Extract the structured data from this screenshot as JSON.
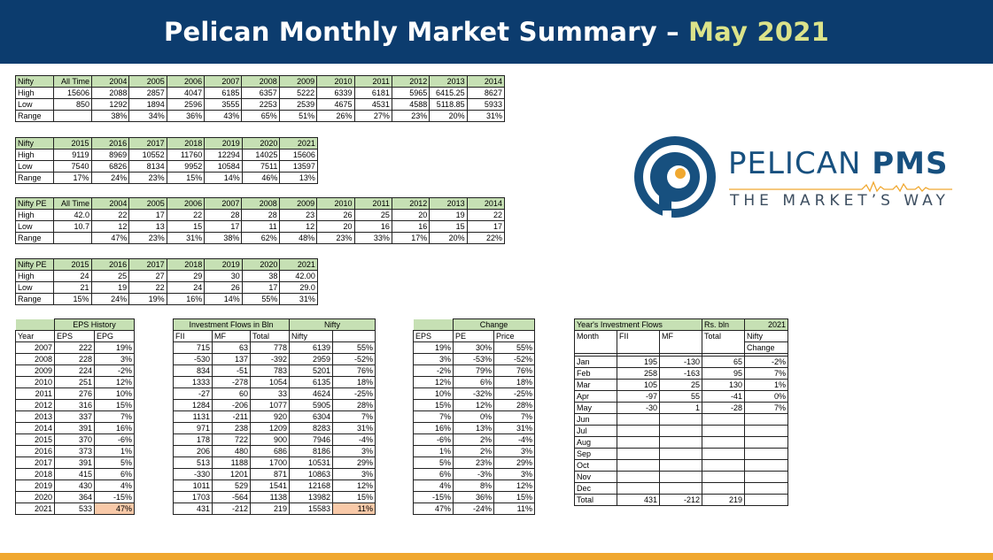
{
  "header": {
    "title_main": "Pelican Monthly Market Summary –",
    "title_accent": "May 2021"
  },
  "logo": {
    "name_light": "PELICAN",
    "name_bold": "PMS",
    "tagline": "THE MARKET’S WAY"
  },
  "t1": {
    "head": [
      "Nifty",
      "All Time",
      "2004",
      "2005",
      "2006",
      "2007",
      "2008",
      "2009",
      "2010",
      "2011",
      "2012",
      "2013",
      "2014"
    ],
    "rows": [
      [
        "High",
        "15606",
        "2088",
        "2857",
        "4047",
        "6185",
        "6357",
        "5222",
        "6339",
        "6181",
        "5965",
        "6415.25",
        "8627"
      ],
      [
        "Low",
        "850",
        "1292",
        "1894",
        "2596",
        "3555",
        "2253",
        "2539",
        "4675",
        "4531",
        "4588",
        "5118.85",
        "5933"
      ],
      [
        "Range",
        "",
        "38%",
        "34%",
        "36%",
        "43%",
        "65%",
        "51%",
        "26%",
        "27%",
        "23%",
        "20%",
        "31%"
      ]
    ]
  },
  "t2": {
    "head": [
      "Nifty",
      "2015",
      "2016",
      "2017",
      "2018",
      "2019",
      "2020",
      "2021"
    ],
    "rows": [
      [
        "High",
        "9119",
        "8969",
        "10552",
        "11760",
        "12294",
        "14025",
        "15606"
      ],
      [
        "Low",
        "7540",
        "6826",
        "8134",
        "9952",
        "10584",
        "7511",
        "13597"
      ],
      [
        "Range",
        "17%",
        "24%",
        "23%",
        "15%",
        "14%",
        "46%",
        "13%"
      ]
    ]
  },
  "t3": {
    "head": [
      "Nifty PE",
      "All Time",
      "2004",
      "2005",
      "2006",
      "2007",
      "2008",
      "2009",
      "2010",
      "2011",
      "2012",
      "2013",
      "2014"
    ],
    "rows": [
      [
        "High",
        "42.0",
        "22",
        "17",
        "22",
        "28",
        "28",
        "23",
        "26",
        "25",
        "20",
        "19",
        "22"
      ],
      [
        "Low",
        "10.7",
        "12",
        "13",
        "15",
        "17",
        "11",
        "12",
        "20",
        "16",
        "16",
        "15",
        "17"
      ],
      [
        "Range",
        "",
        "47%",
        "23%",
        "31%",
        "38%",
        "62%",
        "48%",
        "23%",
        "33%",
        "17%",
        "20%",
        "22%"
      ]
    ]
  },
  "t4": {
    "head": [
      "Nifty PE",
      "2015",
      "2016",
      "2017",
      "2018",
      "2019",
      "2020",
      "2021"
    ],
    "rows": [
      [
        "High",
        "24",
        "25",
        "27",
        "29",
        "30",
        "38",
        "42.00"
      ],
      [
        "Low",
        "21",
        "19",
        "22",
        "24",
        "26",
        "17",
        "29.0"
      ],
      [
        "Range",
        "15%",
        "24%",
        "19%",
        "16%",
        "14%",
        "55%",
        "31%"
      ]
    ]
  },
  "eps": {
    "title": "EPS History",
    "head": [
      "Year",
      "EPS",
      "EPG"
    ],
    "rows": [
      [
        "2007",
        "222",
        "19%"
      ],
      [
        "2008",
        "228",
        "3%"
      ],
      [
        "2009",
        "224",
        "-2%"
      ],
      [
        "2010",
        "251",
        "12%"
      ],
      [
        "2011",
        "276",
        "10%"
      ],
      [
        "2012",
        "316",
        "15%"
      ],
      [
        "2013",
        "337",
        "7%"
      ],
      [
        "2014",
        "391",
        "16%"
      ],
      [
        "2015",
        "370",
        "-6%"
      ],
      [
        "2016",
        "373",
        "1%"
      ],
      [
        "2017",
        "391",
        "5%"
      ],
      [
        "2018",
        "415",
        "6%"
      ],
      [
        "2019",
        "430",
        "4%"
      ],
      [
        "2020",
        "364",
        "-15%"
      ],
      [
        "2021",
        "533",
        "47%"
      ]
    ]
  },
  "flows": {
    "title": "Investment Flows in Bln",
    "nifty_title": "Nifty",
    "head": [
      "FII",
      "MF",
      "Total",
      "Nifty",
      ""
    ],
    "rows": [
      [
        "715",
        "63",
        "778",
        "6139",
        "55%"
      ],
      [
        "-530",
        "137",
        "-392",
        "2959",
        "-52%"
      ],
      [
        "834",
        "-51",
        "783",
        "5201",
        "76%"
      ],
      [
        "1333",
        "-278",
        "1054",
        "6135",
        "18%"
      ],
      [
        "-27",
        "60",
        "33",
        "4624",
        "-25%"
      ],
      [
        "1284",
        "-206",
        "1077",
        "5905",
        "28%"
      ],
      [
        "1131",
        "-211",
        "920",
        "6304",
        "7%"
      ],
      [
        "971",
        "238",
        "1209",
        "8283",
        "31%"
      ],
      [
        "178",
        "722",
        "900",
        "7946",
        "-4%"
      ],
      [
        "206",
        "480",
        "686",
        "8186",
        "3%"
      ],
      [
        "513",
        "1188",
        "1700",
        "10531",
        "29%"
      ],
      [
        "-330",
        "1201",
        "871",
        "10863",
        "3%"
      ],
      [
        "1011",
        "529",
        "1541",
        "12168",
        "12%"
      ],
      [
        "1703",
        "-564",
        "1138",
        "13982",
        "15%"
      ],
      [
        "431",
        "-212",
        "219",
        "15583",
        "11%"
      ]
    ]
  },
  "change": {
    "title": "Change",
    "head": [
      "EPS",
      "PE",
      "Price"
    ],
    "rows": [
      [
        "19%",
        "30%",
        "55%"
      ],
      [
        "3%",
        "-53%",
        "-52%"
      ],
      [
        "-2%",
        "79%",
        "76%"
      ],
      [
        "12%",
        "6%",
        "18%"
      ],
      [
        "10%",
        "-32%",
        "-25%"
      ],
      [
        "15%",
        "12%",
        "28%"
      ],
      [
        "7%",
        "0%",
        "7%"
      ],
      [
        "16%",
        "13%",
        "31%"
      ],
      [
        "-6%",
        "2%",
        "-4%"
      ],
      [
        "1%",
        "2%",
        "3%"
      ],
      [
        "5%",
        "23%",
        "29%"
      ],
      [
        "6%",
        "-3%",
        "3%"
      ],
      [
        "4%",
        "8%",
        "12%"
      ],
      [
        "-15%",
        "36%",
        "15%"
      ],
      [
        "47%",
        "-24%",
        "11%"
      ]
    ]
  },
  "year_flows": {
    "title": "Year's Investment Flows",
    "unit": "Rs. bln",
    "year": "2021",
    "head": [
      "Month",
      "FII",
      "MF",
      "Total",
      "Nifty"
    ],
    "subhead": "Change",
    "rows": [
      [
        "Jan",
        "195",
        "-130",
        "65",
        "-2%"
      ],
      [
        "Feb",
        "258",
        "-163",
        "95",
        "7%"
      ],
      [
        "Mar",
        "105",
        "25",
        "130",
        "1%"
      ],
      [
        "Apr",
        "-97",
        "55",
        "-41",
        "0%"
      ],
      [
        "May",
        "-30",
        "1",
        "-28",
        "7%"
      ],
      [
        "Jun",
        "",
        "",
        "",
        ""
      ],
      [
        "Jul",
        "",
        "",
        "",
        ""
      ],
      [
        "Aug",
        "",
        "",
        "",
        ""
      ],
      [
        "Sep",
        "",
        "",
        "",
        ""
      ],
      [
        "Oct",
        "",
        "",
        "",
        ""
      ],
      [
        "Nov",
        "",
        "",
        "",
        ""
      ],
      [
        "Dec",
        "",
        "",
        "",
        ""
      ],
      [
        "Total",
        "431",
        "-212",
        "219",
        ""
      ]
    ]
  },
  "colors": {
    "header_bg": "#0c3c6e",
    "accent": "#dbe38a",
    "table_header": "#c6e0b4",
    "highlight": "#f8c9a8",
    "bottom_bar": "#f0a830"
  }
}
